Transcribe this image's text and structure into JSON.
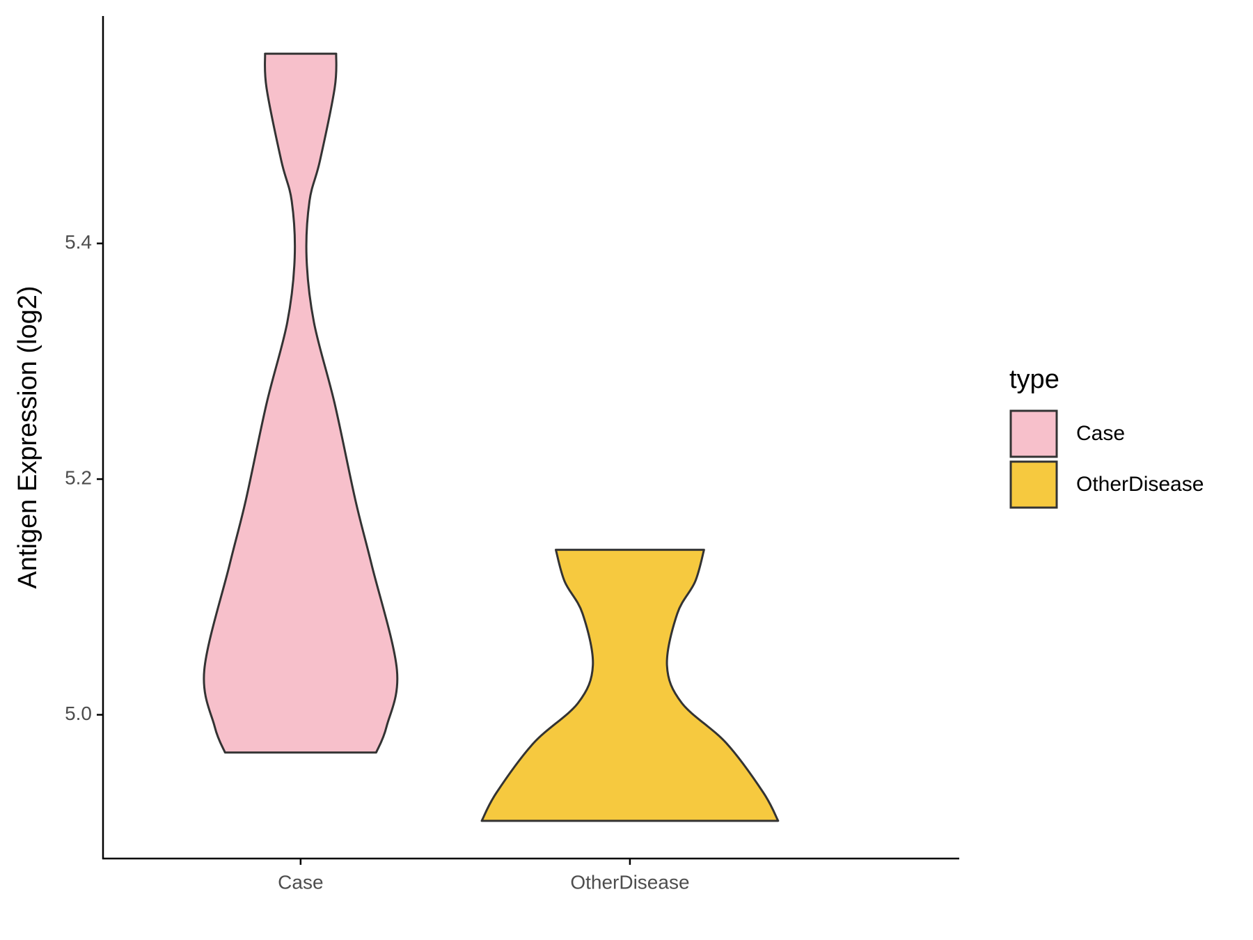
{
  "chart_data": {
    "type": "violin",
    "y_label": "Antigen Expression (log2)",
    "categories": [
      "Case",
      "OtherDisease"
    ],
    "legend_title": "type",
    "legend_position": "right",
    "ylim": [
      4.878,
      5.593
    ],
    "yticks": [
      {
        "value": 5,
        "label": "5.0"
      },
      5.2,
      5.4
    ],
    "series": [
      {
        "name": "Case",
        "color": "#f7c0cb",
        "values": [
          5.561,
          5.532,
          5.47,
          5.436,
          5.388,
          5.333,
          5.264,
          5.182,
          5.127,
          5.038,
          4.99,
          4.968
        ],
        "density": [
          0.24,
          0.23,
          0.13,
          0.06,
          0.04,
          0.09,
          0.23,
          0.37,
          0.48,
          0.65,
          0.58,
          0.51
        ]
      },
      {
        "name": "OtherDisease",
        "color": "#f6c93f",
        "values": [
          5.14,
          5.113,
          5.086,
          5.042,
          5.01,
          4.976,
          4.934,
          4.91
        ],
        "density": [
          0.5,
          0.44,
          0.32,
          0.25,
          0.35,
          0.65,
          0.9,
          1.0
        ]
      }
    ]
  }
}
